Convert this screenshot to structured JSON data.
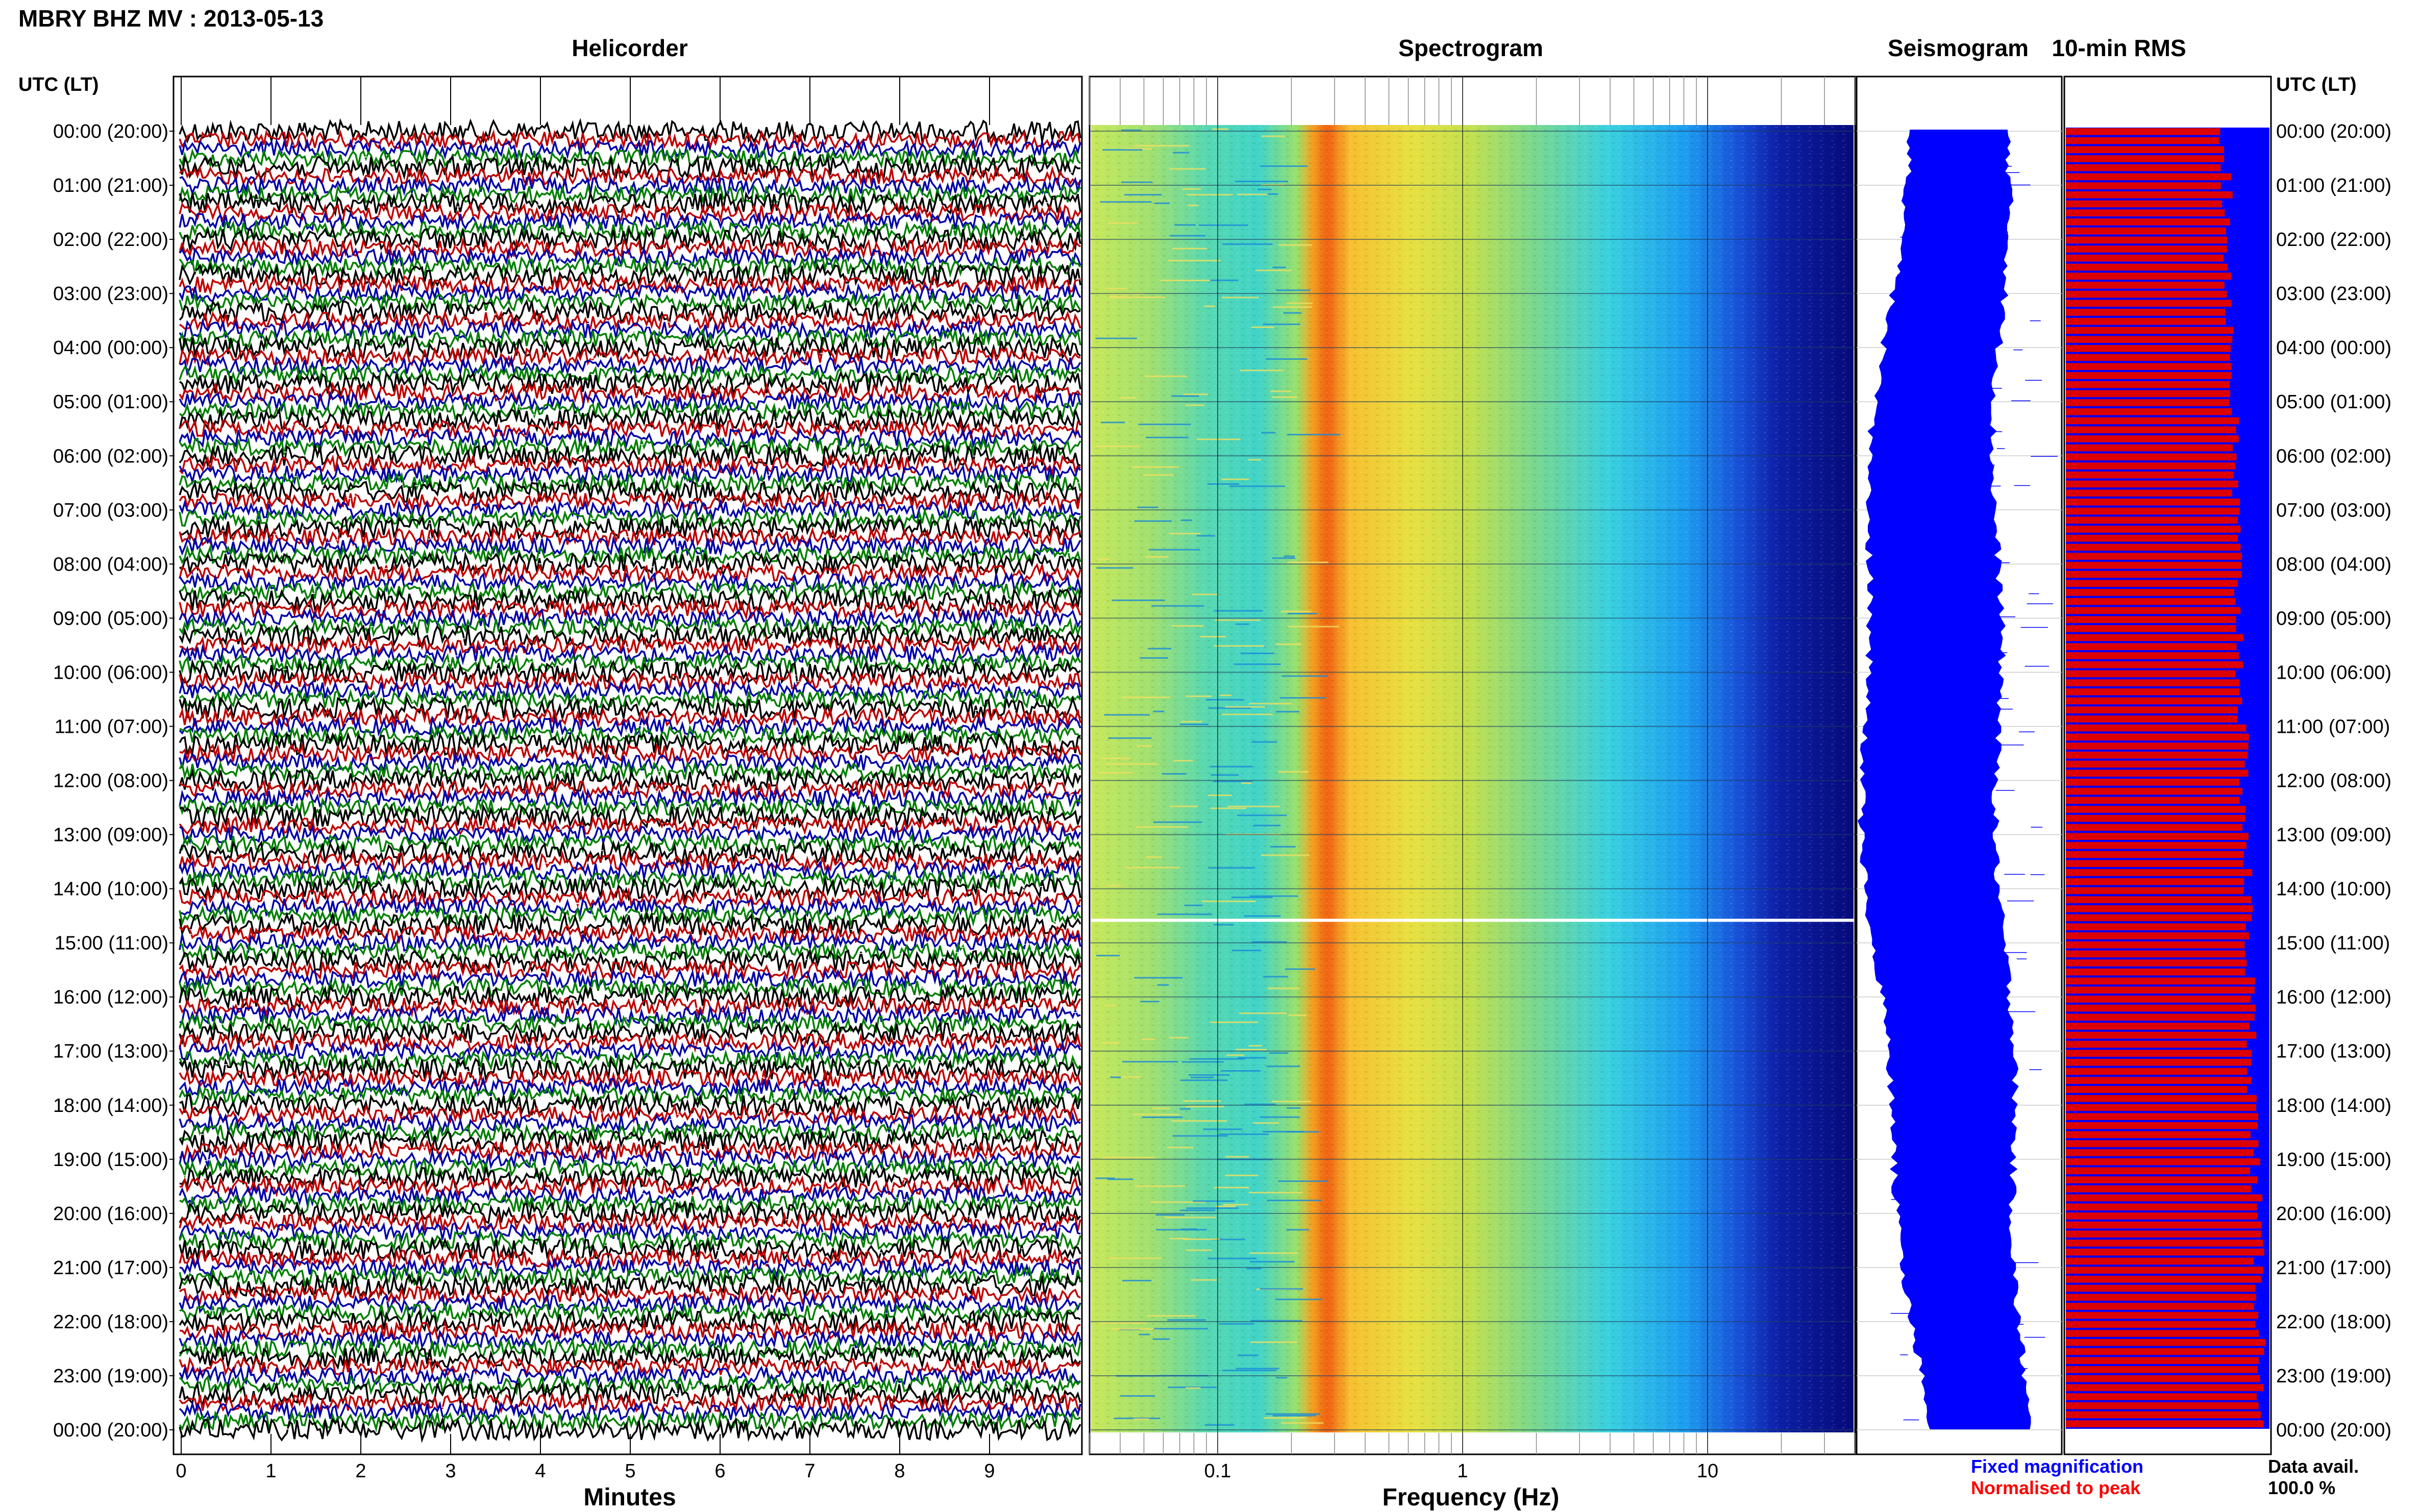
{
  "header": {
    "title": "MBRY BHZ MV : 2013-05-13"
  },
  "panels": {
    "helicorder_title": "Helicorder",
    "spectrogram_title": "Spectrogram",
    "seismogram_title": "Seismogram",
    "rms_title": "10-min RMS"
  },
  "axes": {
    "left_time_header": "UTC (LT)",
    "right_time_header": "UTC (LT)",
    "minutes_label": "Minutes",
    "frequency_label": "Frequency (Hz)"
  },
  "legend": {
    "fixed_label": "Fixed magnification",
    "fixed_color": "#0000ff",
    "normalised_label": "Normalised to peak",
    "normalised_color": "#ff0000"
  },
  "data_avail": {
    "label": "Data avail.",
    "value": "100.0 %"
  },
  "colors": {
    "trace_cycle": [
      "#000000",
      "#c00000",
      "#0000aa",
      "#008000"
    ],
    "rms_fixed": "#0000ff",
    "rms_normalised": "#dd0000",
    "seismogram": "#0000ff"
  },
  "chart_data": [
    {
      "type": "line",
      "name": "Helicorder",
      "xlabel": "Minutes",
      "xlim": [
        0,
        10
      ],
      "x_ticks": [
        "0",
        "1",
        "2",
        "3",
        "4",
        "5",
        "6",
        "7",
        "8",
        "9"
      ],
      "y_tick_labels": [
        "00:00 (20:00)",
        "01:00 (21:00)",
        "02:00 (22:00)",
        "03:00 (23:00)",
        "04:00 (00:00)",
        "05:00 (01:00)",
        "06:00 (02:00)",
        "07:00 (03:00)",
        "08:00 (04:00)",
        "09:00 (05:00)",
        "10:00 (06:00)",
        "11:00 (07:00)",
        "12:00 (08:00)",
        "13:00 (09:00)",
        "14:00 (10:00)",
        "15:00 (11:00)",
        "16:00 (12:00)",
        "17:00 (13:00)",
        "18:00 (14:00)",
        "19:00 (15:00)",
        "20:00 (16:00)",
        "21:00 (17:00)",
        "22:00 (18:00)",
        "23:00 (19:00)",
        "00:00 (20:00)"
      ],
      "traces": 144,
      "trace_minutes": 10
    },
    {
      "type": "heatmap",
      "name": "Spectrogram",
      "xlabel": "Frequency (Hz)",
      "x_scale": "log",
      "xlim": [
        0.03,
        40
      ],
      "x_ticks": [
        "0.1",
        "1",
        "10"
      ],
      "peak_band_hz": [
        0.22,
        0.32
      ],
      "data_gap_utc": "14:35"
    },
    {
      "type": "line",
      "name": "Seismogram",
      "description_axis": "24 h compressed trace",
      "grid": true
    },
    {
      "type": "bar",
      "name": "10-min RMS",
      "orientation": "horizontal",
      "bins": 144,
      "series": [
        {
          "name": "Fixed magnification",
          "values_relative": 1.0
        },
        {
          "name": "Normalised to peak",
          "trend_start_end": [
            0.78,
            0.97
          ]
        }
      ],
      "data_availability_percent": 100.0
    }
  ]
}
